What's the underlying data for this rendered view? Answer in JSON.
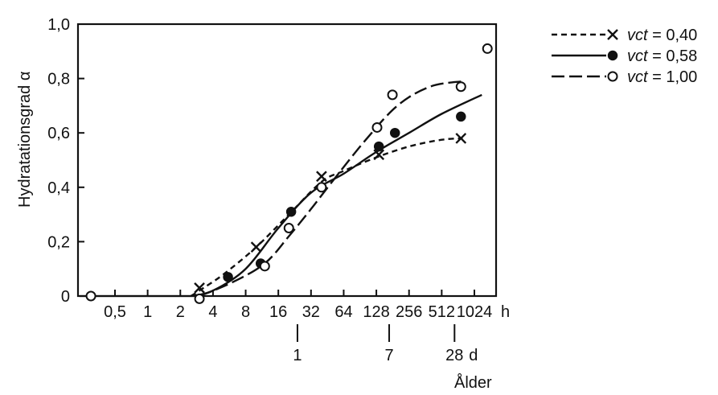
{
  "chart_data": {
    "type": "scatter",
    "title": "",
    "ylabel": "Hydratationsgrad α",
    "xlabel": "Ålder",
    "x_scale": "log2",
    "x_unit_hours": "h",
    "x_unit_days": "d",
    "xlim": [
      0.25,
      1500
    ],
    "ylim": [
      0,
      1.0
    ],
    "x_ticks_hours": [
      {
        "value": 0.5,
        "label": "0,5"
      },
      {
        "value": 1,
        "label": "1"
      },
      {
        "value": 2,
        "label": "2"
      },
      {
        "value": 4,
        "label": "4"
      },
      {
        "value": 8,
        "label": "8"
      },
      {
        "value": 16,
        "label": "16"
      },
      {
        "value": 32,
        "label": "32"
      },
      {
        "value": 64,
        "label": "64"
      },
      {
        "value": 128,
        "label": "128"
      },
      {
        "value": 256,
        "label": "256"
      },
      {
        "value": 512,
        "label": "512"
      },
      {
        "value": 1024,
        "label": "1024"
      }
    ],
    "x_ticks_days": [
      {
        "value": 24,
        "label": "1"
      },
      {
        "value": 168,
        "label": "7"
      },
      {
        "value": 672,
        "label": "28"
      }
    ],
    "y_ticks": [
      {
        "value": 0,
        "label": "0"
      },
      {
        "value": 0.2,
        "label": "0,2"
      },
      {
        "value": 0.4,
        "label": "0,4"
      },
      {
        "value": 0.6,
        "label": "0,6"
      },
      {
        "value": 0.8,
        "label": "0,8"
      },
      {
        "value": 1.0,
        "label": "1,0"
      }
    ],
    "legend_position": "top-right, outside plot",
    "series": [
      {
        "name": "vct = 0,40",
        "name_italic": "vct",
        "name_rest": " = 0,40",
        "marker": "cross",
        "line_style": "short-dash",
        "points": [
          [
            3,
            0.03
          ],
          [
            10,
            0.18
          ],
          [
            40,
            0.44
          ],
          [
            135,
            0.52
          ],
          [
            770,
            0.58
          ]
        ],
        "curve": [
          [
            2.5,
            0.0
          ],
          [
            3,
            0.02
          ],
          [
            5,
            0.08
          ],
          [
            10,
            0.18
          ],
          [
            20,
            0.3
          ],
          [
            40,
            0.42
          ],
          [
            64,
            0.46
          ],
          [
            128,
            0.51
          ],
          [
            256,
            0.55
          ],
          [
            512,
            0.575
          ],
          [
            800,
            0.58
          ]
        ]
      },
      {
        "name": "vct = 0,58",
        "name_italic": "vct",
        "name_rest": " = 0,58",
        "marker": "filled-circle",
        "line_style": "solid",
        "points": [
          [
            5.5,
            0.07
          ],
          [
            11,
            0.12
          ],
          [
            21,
            0.31
          ],
          [
            40,
            0.4
          ],
          [
            135,
            0.55
          ],
          [
            190,
            0.6
          ],
          [
            770,
            0.66
          ]
        ],
        "curve": [
          [
            2.5,
            0.0
          ],
          [
            4,
            0.02
          ],
          [
            8,
            0.1
          ],
          [
            16,
            0.25
          ],
          [
            32,
            0.38
          ],
          [
            64,
            0.45
          ],
          [
            128,
            0.53
          ],
          [
            256,
            0.6
          ],
          [
            512,
            0.67
          ],
          [
            1200,
            0.74
          ]
        ]
      },
      {
        "name": "vct = 1,00",
        "name_italic": "vct",
        "name_rest": " = 1,00",
        "marker": "open-circle",
        "line_style": "long-dash",
        "points": [
          [
            0.3,
            0.0
          ],
          [
            3,
            -0.01
          ],
          [
            12,
            0.11
          ],
          [
            20,
            0.25
          ],
          [
            40,
            0.4
          ],
          [
            130,
            0.62
          ],
          [
            180,
            0.74
          ],
          [
            770,
            0.77
          ],
          [
            1350,
            0.91
          ]
        ],
        "curve": [
          [
            3,
            0.0
          ],
          [
            6,
            0.05
          ],
          [
            12,
            0.12
          ],
          [
            20,
            0.22
          ],
          [
            32,
            0.32
          ],
          [
            50,
            0.42
          ],
          [
            100,
            0.57
          ],
          [
            200,
            0.7
          ],
          [
            400,
            0.77
          ],
          [
            800,
            0.79
          ]
        ]
      }
    ],
    "baseline_x_range": [
      0.25,
      3
    ],
    "colors": {
      "ink": "#111111",
      "background": "#ffffff"
    }
  }
}
